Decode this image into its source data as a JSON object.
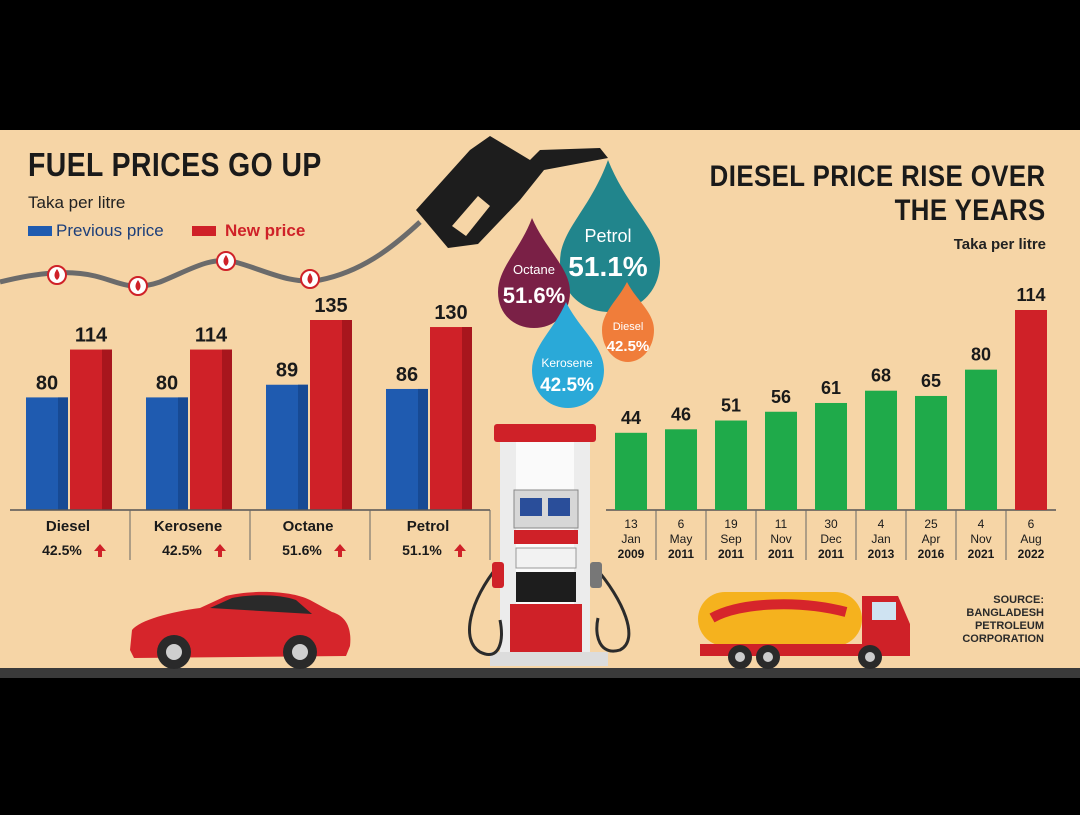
{
  "colors": {
    "background": "#f6d5a6",
    "previous": "#1f5bb0",
    "new": "#cf2128",
    "green": "#1faa4a",
    "up_arrow": "#cf2128"
  },
  "left": {
    "title": "FUEL PRICES GO UP",
    "subtitle": "Taka per litre",
    "legend_previous": "Previous price",
    "legend_new": "New price"
  },
  "right": {
    "title_line1": "DIESEL PRICE RISE OVER",
    "title_line2": "THE YEARS",
    "subtitle": "Taka per litre"
  },
  "drops": {
    "petrol": {
      "label": "Petrol",
      "value": "51.1%"
    },
    "octane": {
      "label": "Octane",
      "value": "51.6%"
    },
    "kerosene": {
      "label": "Kerosene",
      "value": "42.5%"
    },
    "diesel": {
      "label": "Diesel",
      "value": "42.5%"
    }
  },
  "source": [
    "SOURCE:",
    "BANGLADESH",
    "PETROLEUM",
    "CORPORATION"
  ],
  "icons": [
    "fuel-nozzle-icon",
    "fuel-pump-icon",
    "car-icon",
    "tanker-truck-icon",
    "drop-marker-icon",
    "up-arrow-icon"
  ],
  "chart_data": [
    {
      "type": "bar",
      "title": "FUEL PRICES GO UP",
      "subtitle": "Taka per litre",
      "categories": [
        "Diesel",
        "Kerosene",
        "Octane",
        "Petrol"
      ],
      "series": [
        {
          "name": "Previous price",
          "values": [
            80,
            80,
            89,
            86
          ]
        },
        {
          "name": "New price",
          "values": [
            114,
            114,
            135,
            130
          ]
        }
      ],
      "increase": [
        "42.5%",
        "42.5%",
        "51.6%",
        "51.1%"
      ],
      "ylim": [
        0,
        135
      ]
    },
    {
      "type": "bar",
      "title": "DIESEL PRICE RISE OVER THE YEARS",
      "subtitle": "Taka per litre",
      "categories": [
        [
          "13",
          "Jan",
          "2009"
        ],
        [
          "6",
          "May",
          "2011"
        ],
        [
          "19",
          "Sep",
          "2011"
        ],
        [
          "11",
          "Nov",
          "2011"
        ],
        [
          "30",
          "Dec",
          "2011"
        ],
        [
          "4",
          "Jan",
          "2013"
        ],
        [
          "25",
          "Apr",
          "2016"
        ],
        [
          "4",
          "Nov",
          "2021"
        ],
        [
          "6",
          "Aug",
          "2022"
        ]
      ],
      "values": [
        44,
        46,
        51,
        56,
        61,
        68,
        65,
        80,
        114
      ],
      "ylim": [
        0,
        114
      ]
    }
  ]
}
